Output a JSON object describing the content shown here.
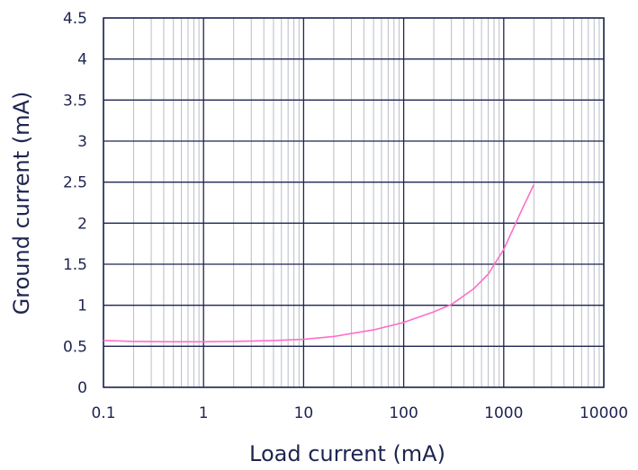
{
  "chart_data": {
    "type": "line",
    "title": "",
    "xlabel": "Load current (mA)",
    "ylabel": "Ground current (mA)",
    "x_scale": "log",
    "xlim": [
      0.1,
      10000
    ],
    "ylim": [
      0,
      4.5
    ],
    "x_ticks": [
      "0.1",
      "1",
      "10",
      "100",
      "1000",
      "10000"
    ],
    "y_ticks": [
      "0",
      "0.5",
      "1",
      "1.5",
      "2",
      "2.5",
      "3",
      "3.5",
      "4",
      "4.5"
    ],
    "grid": true,
    "series": [
      {
        "color": "#ff6ec7",
        "points": [
          [
            0.1,
            0.57
          ],
          [
            0.2,
            0.56
          ],
          [
            0.5,
            0.555
          ],
          [
            1,
            0.555
          ],
          [
            2,
            0.56
          ],
          [
            5,
            0.57
          ],
          [
            10,
            0.585
          ],
          [
            20,
            0.62
          ],
          [
            50,
            0.7
          ],
          [
            100,
            0.79
          ],
          [
            200,
            0.92
          ],
          [
            300,
            1.01
          ],
          [
            500,
            1.2
          ],
          [
            700,
            1.38
          ],
          [
            1000,
            1.68
          ],
          [
            1500,
            2.15
          ],
          [
            2000,
            2.47
          ]
        ]
      }
    ]
  },
  "colors": {
    "grid_major": "#1d2450",
    "grid_minor": "#b9bcc8",
    "line": "#ff6ec7",
    "text": "#1d2450"
  }
}
